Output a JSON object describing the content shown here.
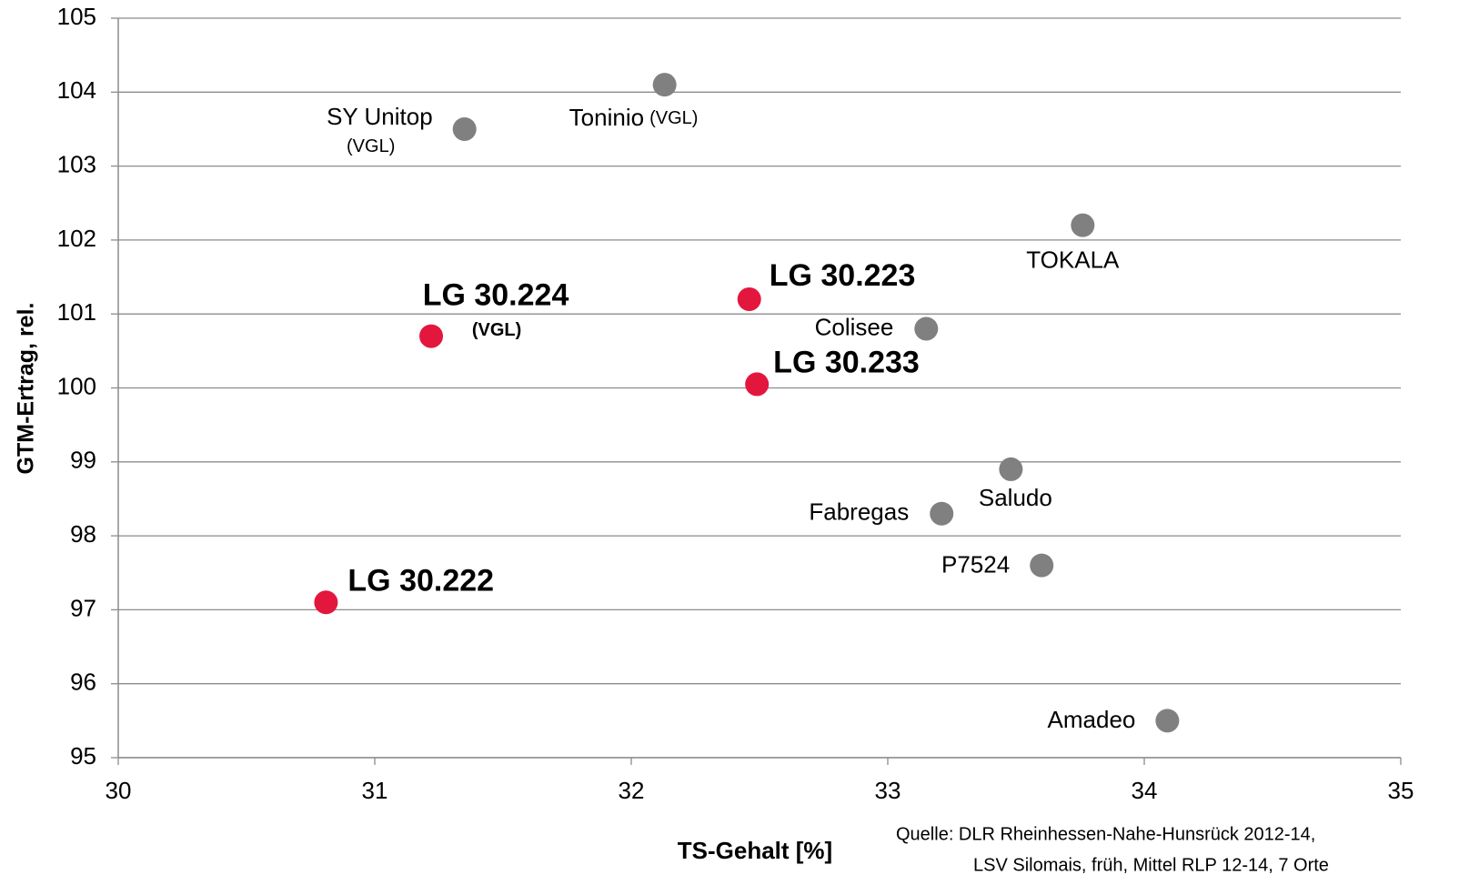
{
  "chart_data": {
    "type": "scatter",
    "x_label": "TS-Gehalt [%]",
    "y_label": "GTM-Ertrag, rel.",
    "source": [
      "Quelle: DLR Rheinhessen-Nahe-Hunsrück  2012-14,",
      "LSV Silomais, früh, Mittel RLP 12-14, 7 Orte"
    ],
    "xlim": [
      30,
      35
    ],
    "xticks": [
      30,
      31,
      32,
      33,
      34,
      35
    ],
    "ylim": [
      95,
      105
    ],
    "yticks": [
      95,
      96,
      97,
      98,
      99,
      100,
      101,
      102,
      103,
      104,
      105
    ],
    "grid": true,
    "points": [
      {
        "label": "SY Unitop",
        "note": "(VGL)",
        "x": 31.35,
        "y": 103.5,
        "color": "#808080"
      },
      {
        "label": "Toninio",
        "note": "(VGL)",
        "x": 32.13,
        "y": 104.1,
        "color": "#808080"
      },
      {
        "label": "TOKALA",
        "x": 33.76,
        "y": 102.2,
        "color": "#808080"
      },
      {
        "label": "LG 30.224",
        "note": "(VGL)",
        "x": 31.22,
        "y": 100.7,
        "color": "#e3173e"
      },
      {
        "label": "LG 30.223",
        "x": 32.46,
        "y": 101.2,
        "color": "#e3173e"
      },
      {
        "label": "Colisee",
        "x": 33.15,
        "y": 100.8,
        "color": "#808080"
      },
      {
        "label": "LG 30.233",
        "x": 32.49,
        "y": 100.05,
        "color": "#e3173e"
      },
      {
        "label": "Saludo",
        "x": 33.48,
        "y": 98.9,
        "color": "#808080"
      },
      {
        "label": "Fabregas",
        "x": 33.21,
        "y": 98.3,
        "color": "#808080"
      },
      {
        "label": "P7524",
        "x": 33.6,
        "y": 97.6,
        "color": "#808080"
      },
      {
        "label": "LG 30.222",
        "x": 30.81,
        "y": 97.1,
        "color": "#e3173e"
      },
      {
        "label": "Amadeo",
        "x": 34.09,
        "y": 95.5,
        "color": "#808080"
      }
    ]
  }
}
